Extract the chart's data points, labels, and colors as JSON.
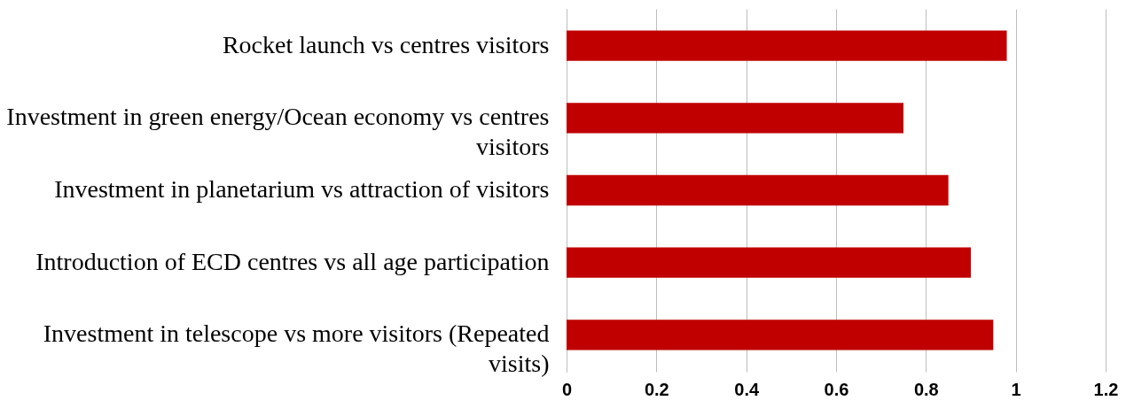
{
  "chart_data": {
    "type": "bar",
    "orientation": "horizontal",
    "categories": [
      "Rocket launch vs centres visitors",
      "Investment in green energy/Ocean economy vs centres visitors",
      "Investment in planetarium vs attraction of visitors",
      "Introduction of ECD centres vs all age participation",
      "Investment in telescope vs more visitors (Repeated visits)"
    ],
    "values": [
      0.98,
      0.75,
      0.85,
      0.9,
      0.95
    ],
    "color": "#c00000",
    "xlim": [
      0,
      1.2
    ],
    "xticks": [
      0,
      0.2,
      0.4,
      0.6,
      0.8,
      1,
      1.2
    ],
    "grid": "x"
  }
}
